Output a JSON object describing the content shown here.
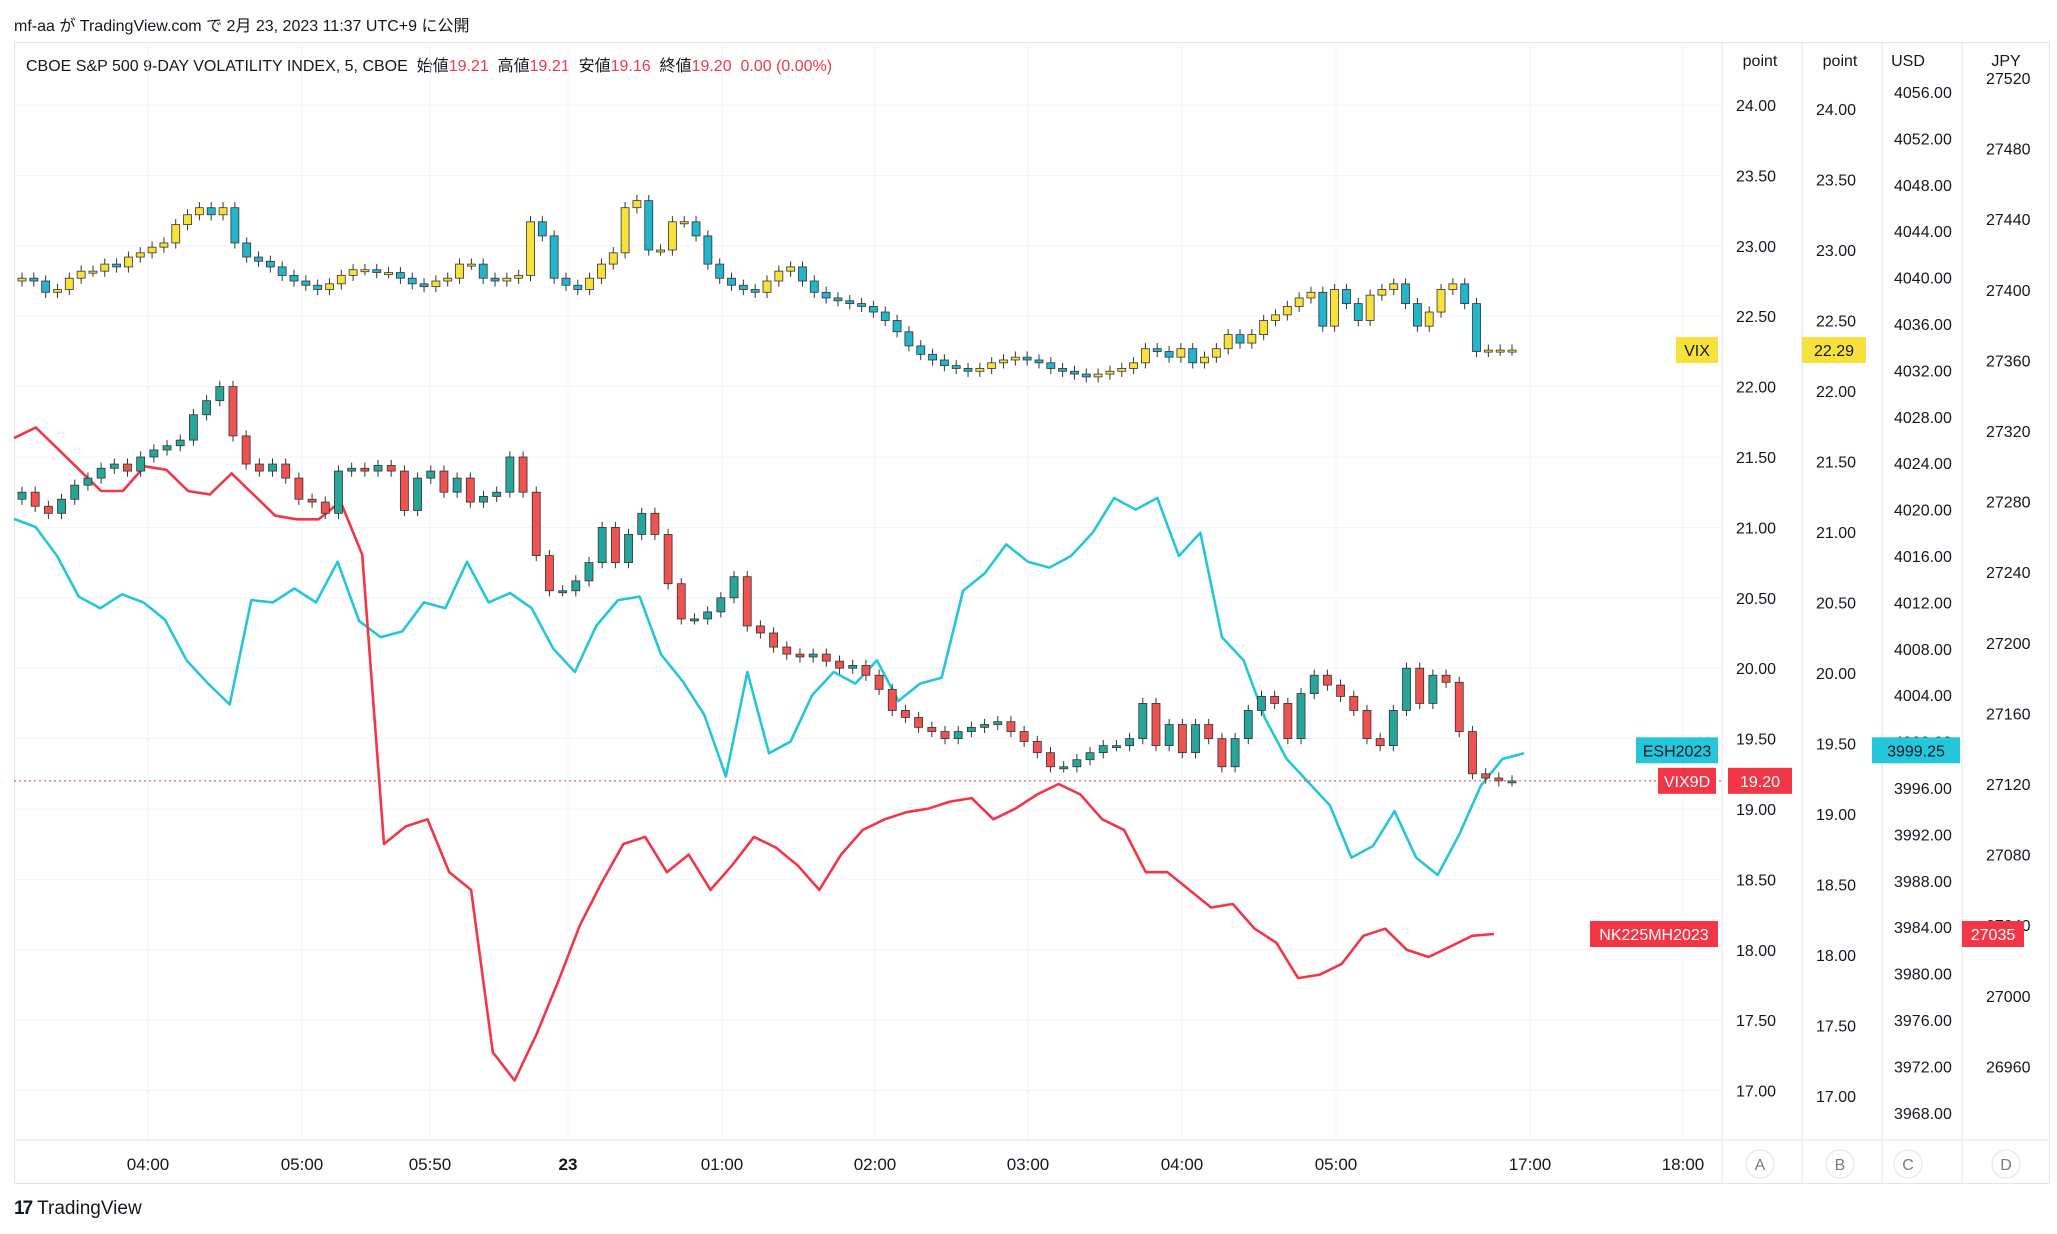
{
  "caption": "mf-aa が TradingView.com で 2月 23, 2023 11:37 UTC+9 に公開",
  "legend": {
    "symbol": "CBOE S&P 500 9-DAY VOLATILITY INDEX, 5, CBOE",
    "open_label": "始値",
    "open": "19.21",
    "high_label": "高値",
    "high": "19.21",
    "low_label": "安値",
    "low": "19.16",
    "close_label": "終値",
    "close": "19.20",
    "change": "0.00 (0.00%)"
  },
  "brand": "TradingView",
  "colors": {
    "up": "#26a69a",
    "down": "#ef5350",
    "vix_up": "#f7e13a",
    "vix_down": "#22b5cc",
    "es": "#26c6da",
    "nk": "#f23645",
    "grid": "#f0f3fa",
    "axis_text": "#131722"
  },
  "chart_data": {
    "type": "candlestick-overlay",
    "x_ticks": [
      "04:00",
      "05:00",
      "05:50",
      "23",
      "01:00",
      "02:00",
      "03:00",
      "04:00",
      "05:00",
      "17:00",
      "18:00"
    ],
    "axes": [
      {
        "id": "A",
        "unit": "point",
        "ticks": [
          "24.00",
          "23.50",
          "23.00",
          "22.50",
          "22.00",
          "21.50",
          "21.00",
          "20.50",
          "20.00",
          "19.50",
          "19.00",
          "18.50",
          "18.00",
          "17.50",
          "17.00"
        ]
      },
      {
        "id": "B",
        "unit": "point",
        "ticks": [
          "24.00",
          "23.50",
          "23.00",
          "22.50",
          "22.00",
          "21.50",
          "21.00",
          "20.50",
          "20.00",
          "19.50",
          "19.00",
          "18.50",
          "18.00",
          "17.50",
          "17.00"
        ]
      },
      {
        "id": "C",
        "unit": "USD",
        "ticks": [
          "4056.00",
          "4052.00",
          "4048.00",
          "4044.00",
          "4040.00",
          "4036.00",
          "4032.00",
          "4028.00",
          "4024.00",
          "4020.00",
          "4016.00",
          "4012.00",
          "4008.00",
          "4004.00",
          "4000.00",
          "3996.00",
          "3992.00",
          "3988.00",
          "3984.00",
          "3980.00",
          "3976.00",
          "3972.00",
          "3968.00"
        ]
      },
      {
        "id": "D",
        "unit": "JPY",
        "ticks": [
          "27520",
          "27480",
          "27440",
          "27400",
          "27360",
          "27320",
          "27280",
          "27240",
          "27200",
          "27160",
          "27120",
          "27080",
          "27040",
          "27000",
          "26960"
        ]
      }
    ],
    "price_labels": [
      {
        "name": "VIX",
        "value": "22.29"
      },
      {
        "name": "ESH2023",
        "value": "3999.25"
      },
      {
        "name": "VIX9D",
        "value": "19.20"
      },
      {
        "name": "NK225MH2023",
        "value": "27035"
      }
    ],
    "series": [
      {
        "name": "VIX",
        "kind": "candles",
        "axis": "B",
        "close": [
          22.8,
          22.78,
          22.7,
          22.72,
          22.8,
          22.85,
          22.85,
          22.9,
          22.88,
          22.95,
          22.98,
          23.02,
          23.05,
          23.18,
          23.25,
          23.3,
          23.25,
          23.3,
          23.05,
          22.95,
          22.92,
          22.88,
          22.82,
          22.78,
          22.75,
          22.72,
          22.76,
          22.82,
          22.86,
          22.86,
          22.84,
          22.84,
          22.8,
          22.76,
          22.74,
          22.78,
          22.8,
          22.9,
          22.9,
          22.8,
          22.78,
          22.8,
          22.82,
          23.2,
          23.1,
          22.8,
          22.75,
          22.72,
          22.8,
          22.9,
          22.98,
          23.3,
          23.35,
          23.0,
          23.0,
          23.2,
          23.2,
          23.1,
          22.9,
          22.8,
          22.75,
          22.72,
          22.7,
          22.78,
          22.85,
          22.88,
          22.78,
          22.7,
          22.66,
          22.64,
          22.62,
          22.6,
          22.56,
          22.5,
          22.42,
          22.32,
          22.26,
          22.22,
          22.18,
          22.16,
          22.14,
          22.16,
          22.2,
          22.22,
          22.24,
          22.22,
          22.2,
          22.16,
          22.14,
          22.12,
          22.1,
          22.12,
          22.14,
          22.16,
          22.2,
          22.3,
          22.28,
          22.24,
          22.3,
          22.2,
          22.24,
          22.3,
          22.4,
          22.34,
          22.4,
          22.5,
          22.54,
          22.6,
          22.66,
          22.7,
          22.46,
          22.72,
          22.62,
          22.5,
          22.68,
          22.72,
          22.76,
          22.62,
          22.46,
          22.56,
          22.72,
          22.76,
          22.62,
          22.28,
          22.29,
          22.29,
          22.29
        ],
        "open": [
          22.78,
          22.8,
          22.78,
          22.7,
          22.72,
          22.8,
          22.85,
          22.85,
          22.9,
          22.88,
          22.95,
          22.98,
          23.02,
          23.05,
          23.18,
          23.25,
          23.3,
          23.25,
          23.3,
          23.05,
          22.95,
          22.92,
          22.88,
          22.82,
          22.78,
          22.75,
          22.72,
          22.76,
          22.82,
          22.86,
          22.86,
          22.84,
          22.84,
          22.8,
          22.76,
          22.74,
          22.78,
          22.8,
          22.9,
          22.9,
          22.8,
          22.78,
          22.8,
          22.82,
          23.2,
          23.1,
          22.8,
          22.75,
          22.72,
          22.8,
          22.9,
          22.98,
          23.3,
          23.35,
          23.0,
          23.0,
          23.2,
          23.2,
          23.1,
          22.9,
          22.8,
          22.75,
          22.72,
          22.7,
          22.78,
          22.85,
          22.88,
          22.78,
          22.7,
          22.66,
          22.64,
          22.62,
          22.6,
          22.56,
          22.5,
          22.42,
          22.32,
          22.26,
          22.22,
          22.18,
          22.16,
          22.14,
          22.16,
          22.2,
          22.22,
          22.24,
          22.22,
          22.2,
          22.16,
          22.14,
          22.12,
          22.1,
          22.12,
          22.14,
          22.16,
          22.2,
          22.3,
          22.28,
          22.24,
          22.3,
          22.2,
          22.24,
          22.3,
          22.4,
          22.34,
          22.4,
          22.5,
          22.54,
          22.6,
          22.66,
          22.7,
          22.46,
          22.72,
          22.62,
          22.5,
          22.68,
          22.72,
          22.76,
          22.62,
          22.46,
          22.56,
          22.72,
          22.76,
          22.62,
          22.28,
          22.29,
          22.29
        ]
      },
      {
        "name": "VIX9D",
        "kind": "candles",
        "axis": "A",
        "close": [
          21.25,
          21.15,
          21.1,
          21.2,
          21.3,
          21.35,
          21.42,
          21.45,
          21.4,
          21.5,
          21.55,
          21.58,
          21.62,
          21.8,
          21.9,
          22.0,
          21.65,
          21.45,
          21.4,
          21.45,
          21.35,
          21.2,
          21.18,
          21.1,
          21.4,
          21.42,
          21.4,
          21.44,
          21.4,
          21.12,
          21.35,
          21.4,
          21.25,
          21.35,
          21.18,
          21.22,
          21.25,
          21.5,
          21.25,
          20.8,
          20.55,
          20.55,
          20.62,
          20.75,
          21.0,
          20.75,
          20.95,
          21.1,
          20.95,
          20.6,
          20.35,
          20.35,
          20.4,
          20.5,
          20.65,
          20.3,
          20.25,
          20.15,
          20.1,
          20.08,
          20.1,
          20.05,
          20.0,
          20.02,
          19.95,
          19.85,
          19.7,
          19.65,
          19.58,
          19.55,
          19.5,
          19.55,
          19.58,
          19.6,
          19.62,
          19.55,
          19.48,
          19.4,
          19.3,
          19.3,
          19.35,
          19.4,
          19.45,
          19.45,
          19.5,
          19.75,
          19.45,
          19.6,
          19.4,
          19.6,
          19.5,
          19.3,
          19.5,
          19.7,
          19.8,
          19.75,
          19.5,
          19.82,
          19.95,
          19.88,
          19.8,
          19.7,
          19.5,
          19.45,
          19.7,
          20.0,
          19.75,
          19.95,
          19.9,
          19.55,
          19.25,
          19.22,
          19.2,
          19.2
        ],
        "open": [
          21.2,
          21.25,
          21.15,
          21.1,
          21.2,
          21.3,
          21.35,
          21.42,
          21.45,
          21.4,
          21.5,
          21.55,
          21.58,
          21.62,
          21.8,
          21.9,
          22.0,
          21.65,
          21.45,
          21.4,
          21.45,
          21.35,
          21.2,
          21.18,
          21.1,
          21.4,
          21.42,
          21.4,
          21.44,
          21.4,
          21.12,
          21.35,
          21.4,
          21.25,
          21.35,
          21.18,
          21.22,
          21.25,
          21.5,
          21.25,
          20.8,
          20.55,
          20.55,
          20.62,
          20.75,
          21.0,
          20.75,
          20.95,
          21.1,
          20.95,
          20.6,
          20.35,
          20.35,
          20.4,
          20.5,
          20.65,
          20.3,
          20.25,
          20.15,
          20.1,
          20.08,
          20.1,
          20.05,
          20.0,
          20.02,
          19.95,
          19.85,
          19.7,
          19.65,
          19.58,
          19.55,
          19.5,
          19.55,
          19.58,
          19.6,
          19.62,
          19.55,
          19.48,
          19.4,
          19.3,
          19.3,
          19.35,
          19.4,
          19.45,
          19.45,
          19.5,
          19.75,
          19.45,
          19.6,
          19.4,
          19.6,
          19.5,
          19.3,
          19.5,
          19.7,
          19.8,
          19.75,
          19.5,
          19.82,
          19.95,
          19.88,
          19.8,
          19.7,
          19.5,
          19.45,
          19.7,
          20.0,
          19.75,
          19.95,
          19.9,
          19.55,
          19.25,
          19.22,
          19.2
        ]
      },
      {
        "name": "ESH2023",
        "kind": "line",
        "axis": "C",
        "values": [
          4019.2,
          4018.5,
          4016.0,
          4012.5,
          4011.5,
          4012.7,
          4012.0,
          4010.5,
          4007.0,
          4005.0,
          4003.2,
          4012.2,
          4012.0,
          4013.2,
          4012.0,
          4015.5,
          4010.4,
          4009.0,
          4009.5,
          4012.0,
          4011.5,
          4015.5,
          4012.0,
          4012.8,
          4011.5,
          4008.0,
          4006.0,
          4010.0,
          4012.2,
          4012.5,
          4007.5,
          4005.2,
          4002.3,
          3997.0,
          4006.0,
          3999.0,
          4000.0,
          4004.0,
          4006.0,
          4005.0,
          4007.0,
          4003.5,
          4005.0,
          4005.5,
          4013.0,
          4014.5,
          4017.0,
          4015.5,
          4015.0,
          4016.0,
          4018.0,
          4021.0,
          4020.0,
          4021.0,
          4016.0,
          4018.0,
          4009.0,
          4007.0,
          4002.0,
          3998.5,
          3996.5,
          3994.5,
          3990.0,
          3991.0,
          3994.0,
          3990.0,
          3988.5,
          3992.0,
          3996.2,
          3998.5,
          3999.0
        ]
      },
      {
        "name": "NK225MH2023",
        "kind": "line",
        "axis": "D",
        "values": [
          27316,
          27322,
          27310,
          27298,
          27286,
          27286,
          27300,
          27298,
          27286,
          27284,
          27296,
          27284,
          27272,
          27270,
          27270,
          27280,
          27250,
          27086,
          27096,
          27100,
          27070,
          27060,
          26968,
          26952,
          26978,
          27008,
          27040,
          27064,
          27086,
          27090,
          27070,
          27080,
          27060,
          27074,
          27090,
          27084,
          27074,
          27060,
          27080,
          27094,
          27100,
          27104,
          27106,
          27110,
          27112,
          27100,
          27106,
          27114,
          27120,
          27114,
          27100,
          27094,
          27070,
          27070,
          27060,
          27050,
          27052,
          27038,
          27030,
          27010,
          27012,
          27018,
          27034,
          27038,
          27026,
          27022,
          27028,
          27034,
          27035
        ]
      }
    ]
  }
}
